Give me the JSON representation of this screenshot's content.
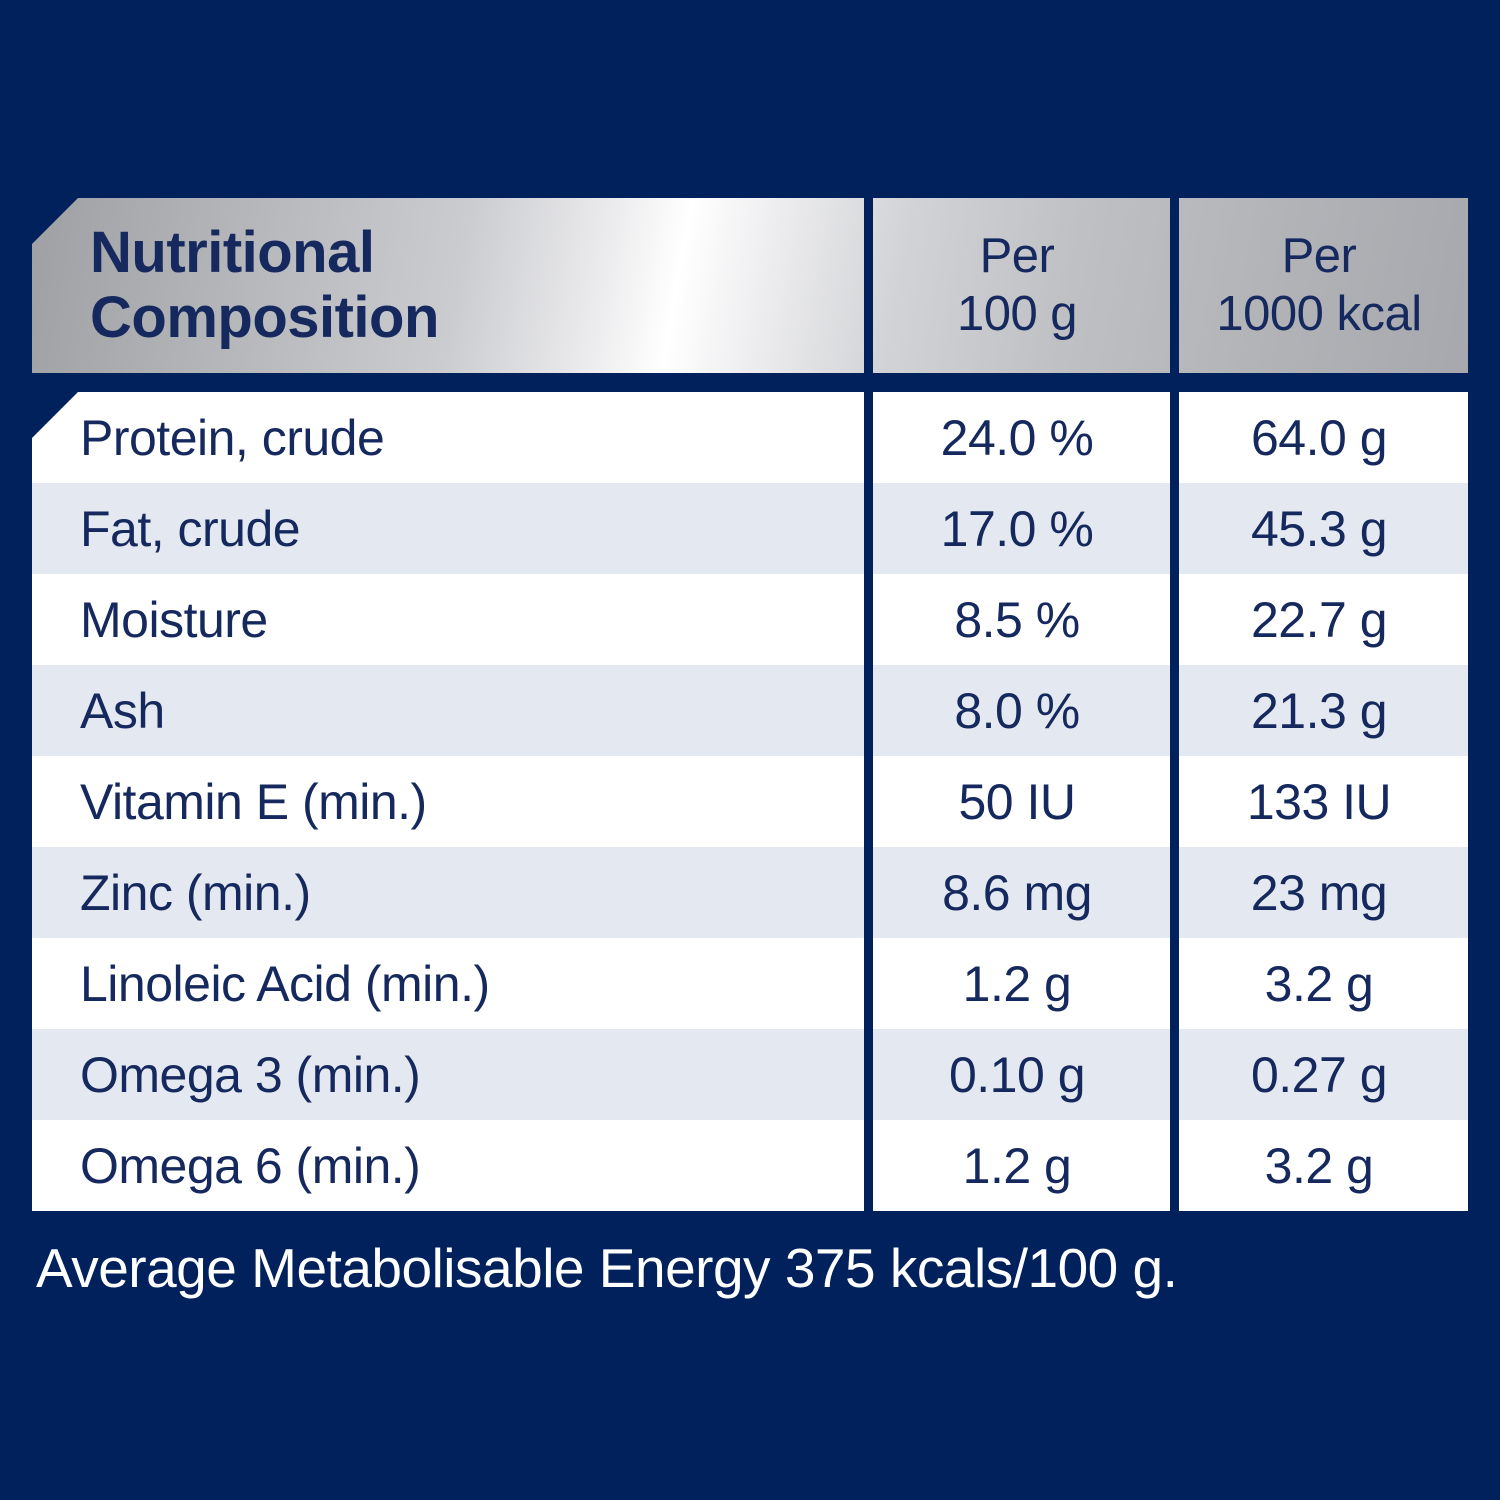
{
  "colors": {
    "navy-bg": "#00215C",
    "text-navy": "#16295E",
    "row-alt": "#E4E8F0",
    "row-white": "#FFFFFF",
    "silver-dark": "#9FA0A4",
    "silver-highlight": "#FFFFFF"
  },
  "table": {
    "title_line1": "Nutritional",
    "title_line2": "Composition",
    "columns": [
      {
        "line1": "Per",
        "line2": "100 g"
      },
      {
        "line1": "Per",
        "line2": "1000 kcal"
      }
    ],
    "rows": [
      {
        "label": "Protein, crude",
        "per_100g": "24.0 %",
        "per_1000kcal": "64.0 g"
      },
      {
        "label": "Fat, crude",
        "per_100g": "17.0 %",
        "per_1000kcal": "45.3 g"
      },
      {
        "label": "Moisture",
        "per_100g": "8.5 %",
        "per_1000kcal": "22.7 g"
      },
      {
        "label": "Ash",
        "per_100g": "8.0 %",
        "per_1000kcal": "21.3 g"
      },
      {
        "label": "Vitamin E (min.)",
        "per_100g": "50 IU",
        "per_1000kcal": "133 IU"
      },
      {
        "label": "Zinc (min.)",
        "per_100g": "8.6 mg",
        "per_1000kcal": "23 mg"
      },
      {
        "label": "Linoleic Acid (min.)",
        "per_100g": "1.2 g",
        "per_1000kcal": "3.2 g"
      },
      {
        "label": "Omega 3 (min.)",
        "per_100g": "0.10 g",
        "per_1000kcal": "0.27 g"
      },
      {
        "label": "Omega 6 (min.)",
        "per_100g": "1.2 g",
        "per_1000kcal": "3.2 g"
      }
    ],
    "energy_note": "Average Metabolisable Energy 375 kcals/100 g."
  }
}
